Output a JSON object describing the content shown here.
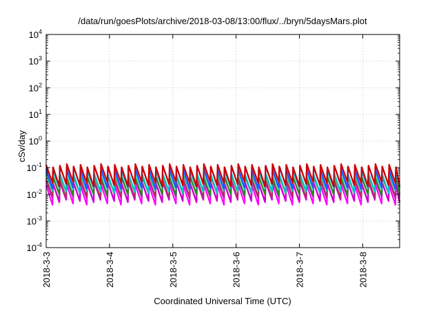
{
  "chart_data": {
    "type": "line",
    "title": "/data/run/goesPlots/archive/2018-03-08/13:00/flux/../bryn/5daysMars.plot",
    "xlabel": "Coordinated Universal Time (UTC)",
    "ylabel": "cSv/day",
    "x_range": [
      "2018-03-03",
      "2018-03-08 14:00"
    ],
    "y_scale": "log",
    "ylim": [
      0.0001,
      10000
    ],
    "x_tick_labels": [
      "2018-3-3",
      "2018-3-4",
      "2018-3-5",
      "2018-3-6",
      "2018-3-7",
      "2018-3-8"
    ],
    "y_tick_labels": [
      {
        "base": "10",
        "exp": "-4"
      },
      {
        "base": "10",
        "exp": "-3"
      },
      {
        "base": "10",
        "exp": "-2"
      },
      {
        "base": "10",
        "exp": "-1"
      },
      {
        "base": "10",
        "exp": "0"
      },
      {
        "base": "10",
        "exp": "1"
      },
      {
        "base": "10",
        "exp": "2"
      },
      {
        "base": "10",
        "exp": "3"
      },
      {
        "base": "10",
        "exp": "4"
      }
    ],
    "grid": true,
    "period_hours": 2.6,
    "series": [
      {
        "color": "#ff00ff",
        "peak": 0.025,
        "trough": 0.005
      },
      {
        "color": "#cc00cc",
        "peak": 0.03,
        "trough": 0.0065
      },
      {
        "color": "#b03060",
        "peak": 0.04,
        "trough": 0.009
      },
      {
        "color": "#228b22",
        "peak": 0.05,
        "trough": 0.011
      },
      {
        "color": "#00c8c8",
        "peak": 0.065,
        "trough": 0.014
      },
      {
        "color": "#2f4fff",
        "peak": 0.1,
        "trough": 0.02
      },
      {
        "color": "#cc0000",
        "peak": 0.12,
        "trough": 0.024
      }
    ]
  }
}
